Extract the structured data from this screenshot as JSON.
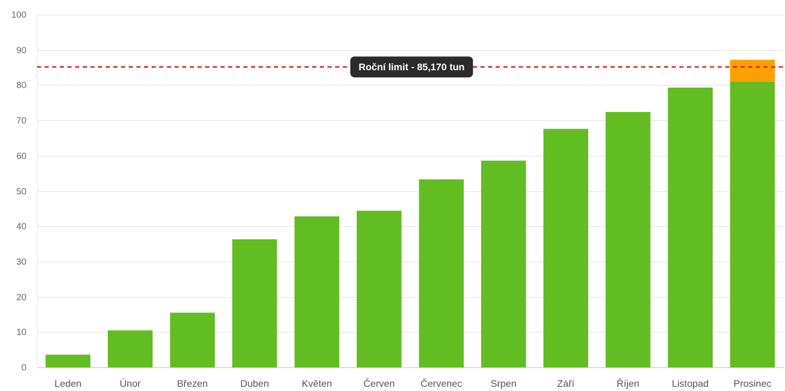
{
  "chart_data": {
    "type": "bar",
    "categories": [
      "Leden",
      "Únor",
      "Březen",
      "Duben",
      "Květen",
      "Červen",
      "Červenec",
      "Srpen",
      "Září",
      "Říjen",
      "Listopad",
      "Prosinec"
    ],
    "values": [
      3.6,
      10.5,
      15.5,
      36.3,
      42.8,
      44.4,
      53.3,
      58.6,
      67.6,
      72.4,
      79.3,
      87.2
    ],
    "ylim": [
      0,
      100
    ],
    "yticks": [
      0,
      10,
      20,
      30,
      40,
      50,
      60,
      70,
      80,
      90,
      100
    ],
    "grid": true,
    "limit": {
      "value": 85.17,
      "label": "Roční limit - 85,170 tun",
      "color": "#dd1111"
    },
    "colors": {
      "bar": "#62bd22",
      "over_limit": "#ffa000",
      "label_bg": "#2b2b2b"
    }
  }
}
